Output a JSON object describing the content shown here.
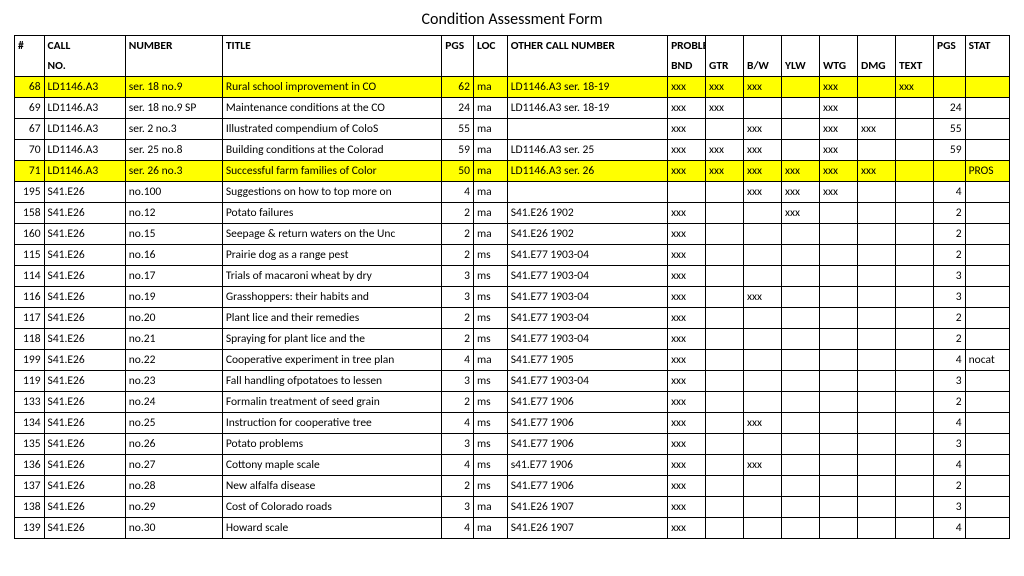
{
  "title": "Condition Assessment Form",
  "header": {
    "row1": [
      "#",
      "CALL",
      "NUMBER",
      "TITLE",
      "PGS",
      "LOC",
      "OTHER CALL NUMBER",
      "PROBLEMS",
      "",
      "",
      "",
      "",
      "",
      "",
      "PGS",
      "STAT"
    ],
    "row2": [
      "",
      "NO.",
      "",
      "",
      "",
      "",
      "",
      "BND",
      "GTR",
      "B/W",
      "YLW",
      "WTG",
      "DMG",
      "TEXT",
      "",
      ""
    ]
  },
  "rows": [
    {
      "hl": true,
      "cells": [
        "68",
        "LD1146.A3",
        "ser. 18 no.9",
        "Rural school improvement in CO",
        "62",
        "ma",
        "LD1146.A3 ser. 18-19",
        "xxx",
        "xxx",
        "xxx",
        "",
        "xxx",
        "",
        "xxx",
        "",
        ""
      ]
    },
    {
      "hl": false,
      "cells": [
        "69",
        "LD1146.A3",
        "ser. 18 no.9 SP",
        "Maintenance conditions at the CO",
        "24",
        "ma",
        "LD1146.A3 ser. 18-19",
        "xxx",
        "xxx",
        "",
        "",
        "xxx",
        "",
        "",
        "24",
        ""
      ]
    },
    {
      "hl": false,
      "cells": [
        "67",
        "LD1146.A3",
        "ser. 2 no.3",
        "Illustrated compendium of ColoS",
        "55",
        "ma",
        "",
        "xxx",
        "",
        "xxx",
        "",
        "xxx",
        "xxx",
        "",
        "55",
        ""
      ]
    },
    {
      "hl": false,
      "cells": [
        "70",
        "LD1146.A3",
        "ser. 25 no.8",
        "Building conditions at the Colorad",
        "59",
        "ma",
        "LD1146.A3 ser. 25",
        "xxx",
        "xxx",
        "xxx",
        "",
        "xxx",
        "",
        "",
        "59",
        ""
      ]
    },
    {
      "hl": true,
      "cells": [
        "71",
        "LD1146.A3",
        "ser. 26 no.3",
        "Successful farm families of Color",
        "50",
        "ma",
        "LD1146.A3 ser. 26",
        "xxx",
        "xxx",
        "xxx",
        "xxx",
        "xxx",
        "xxx",
        "",
        "",
        "PROS"
      ]
    },
    {
      "hl": false,
      "cells": [
        "195",
        "S41.E26",
        "no.100",
        "Suggestions on how to top more on",
        "4",
        "ma",
        "",
        "",
        "",
        "xxx",
        "xxx",
        "xxx",
        "",
        "",
        "4",
        ""
      ]
    },
    {
      "hl": false,
      "cells": [
        "158",
        "S41.E26",
        "no.12",
        "Potato failures",
        "2",
        "ma",
        "S41.E26 1902",
        "xxx",
        "",
        "",
        "xxx",
        "",
        "",
        "",
        "2",
        ""
      ]
    },
    {
      "hl": false,
      "cells": [
        "160",
        "S41.E26",
        "no.15",
        "Seepage & return waters on the Unc",
        "2",
        "ma",
        "S41.E26 1902",
        "xxx",
        "",
        "",
        "",
        "",
        "",
        "",
        "2",
        ""
      ]
    },
    {
      "hl": false,
      "cells": [
        "115",
        "S41.E26",
        "no.16",
        "Prairie dog as a range pest",
        "2",
        "ms",
        "S41.E77 1903-04",
        "xxx",
        "",
        "",
        "",
        "",
        "",
        "",
        "2",
        ""
      ]
    },
    {
      "hl": false,
      "cells": [
        "114",
        "S41.E26",
        "no.17",
        "Trials of macaroni wheat by dry",
        "3",
        "ms",
        "S41.E77 1903-04",
        "xxx",
        "",
        "",
        "",
        "",
        "",
        "",
        "3",
        ""
      ]
    },
    {
      "hl": false,
      "cells": [
        "116",
        "S41.E26",
        "no.19",
        "Grasshoppers: their habits and",
        "3",
        "ms",
        "S41.E77 1903-04",
        "xxx",
        "",
        "xxx",
        "",
        "",
        "",
        "",
        "3",
        ""
      ]
    },
    {
      "hl": false,
      "cells": [
        "117",
        "S41.E26",
        "no.20",
        "Plant lice and their remedies",
        "2",
        "ms",
        "S41.E77 1903-04",
        "xxx",
        "",
        "",
        "",
        "",
        "",
        "",
        "2",
        ""
      ]
    },
    {
      "hl": false,
      "cells": [
        "118",
        "S41.E26",
        "no.21",
        "Spraying for plant lice and the",
        "2",
        "ms",
        "S41.E77 1903-04",
        "xxx",
        "",
        "",
        "",
        "",
        "",
        "",
        "2",
        ""
      ]
    },
    {
      "hl": false,
      "cells": [
        "199",
        "S41.E26",
        "no.22",
        "Cooperative experiment in tree plan",
        "4",
        "ma",
        "S41.E77 1905",
        "xxx",
        "",
        "",
        "",
        "",
        "",
        "",
        "4",
        "nocat"
      ]
    },
    {
      "hl": false,
      "cells": [
        "119",
        "S41.E26",
        "no.23",
        "Fall handling ofpotatoes to lessen",
        "3",
        "ms",
        "S41.E77 1903-04",
        "xxx",
        "",
        "",
        "",
        "",
        "",
        "",
        "3",
        ""
      ]
    },
    {
      "hl": false,
      "cells": [
        "133",
        "S41.E26",
        "no.24",
        "Formalin treatment of seed grain",
        "2",
        "ms",
        "S41.E77 1906",
        "xxx",
        "",
        "",
        "",
        "",
        "",
        "",
        "2",
        ""
      ]
    },
    {
      "hl": false,
      "cells": [
        "134",
        "S41.E26",
        "no.25",
        "Instruction for cooperative tree",
        "4",
        "ms",
        "S41.E77 1906",
        "xxx",
        "",
        "xxx",
        "",
        "",
        "",
        "",
        "4",
        ""
      ]
    },
    {
      "hl": false,
      "cells": [
        "135",
        "S41.E26",
        "no.26",
        "Potato problems",
        "3",
        "ms",
        "S41.E77 1906",
        "xxx",
        "",
        "",
        "",
        "",
        "",
        "",
        "3",
        ""
      ]
    },
    {
      "hl": false,
      "cells": [
        "136",
        "S41.E26",
        "no.27",
        "Cottony maple scale",
        "4",
        "ms",
        "s41.E77 1906",
        "xxx",
        "",
        "xxx",
        "",
        "",
        "",
        "",
        "4",
        ""
      ]
    },
    {
      "hl": false,
      "cells": [
        "137",
        "S41.E26",
        "no.28",
        "New alfalfa disease",
        "2",
        "ms",
        "S41.E77 1906",
        "xxx",
        "",
        "",
        "",
        "",
        "",
        "",
        "2",
        ""
      ]
    },
    {
      "hl": false,
      "cells": [
        "138",
        "S41.E26",
        "no.29",
        "Cost of Colorado roads",
        "3",
        "ma",
        "S41.E26 1907",
        "xxx",
        "",
        "",
        "",
        "",
        "",
        "",
        "3",
        ""
      ]
    },
    {
      "hl": false,
      "cells": [
        "139",
        "S41.E26",
        "no.30",
        "Howard scale",
        "4",
        "ma",
        "S41.E26 1907",
        "xxx",
        "",
        "",
        "",
        "",
        "",
        "",
        "4",
        ""
      ]
    }
  ],
  "rightAlignCols": [
    0,
    4,
    14
  ],
  "colClasses": [
    "num-col",
    "call-col",
    "numno-col",
    "title-col",
    "pgs-col",
    "loc-col",
    "other-col",
    "prob-col",
    "prob-col",
    "prob-col",
    "prob-col",
    "prob-col",
    "prob-col",
    "prob-col",
    "pgs2-col",
    "stat-col"
  ],
  "cellNames": [
    "row-num",
    "call-no",
    "number",
    "title",
    "pgs",
    "loc",
    "other-call",
    "prob-bnd",
    "prob-gtr",
    "prob-bw",
    "prob-ylw",
    "prob-wtg",
    "prob-dmg",
    "prob-text",
    "pgs2",
    "stat"
  ]
}
